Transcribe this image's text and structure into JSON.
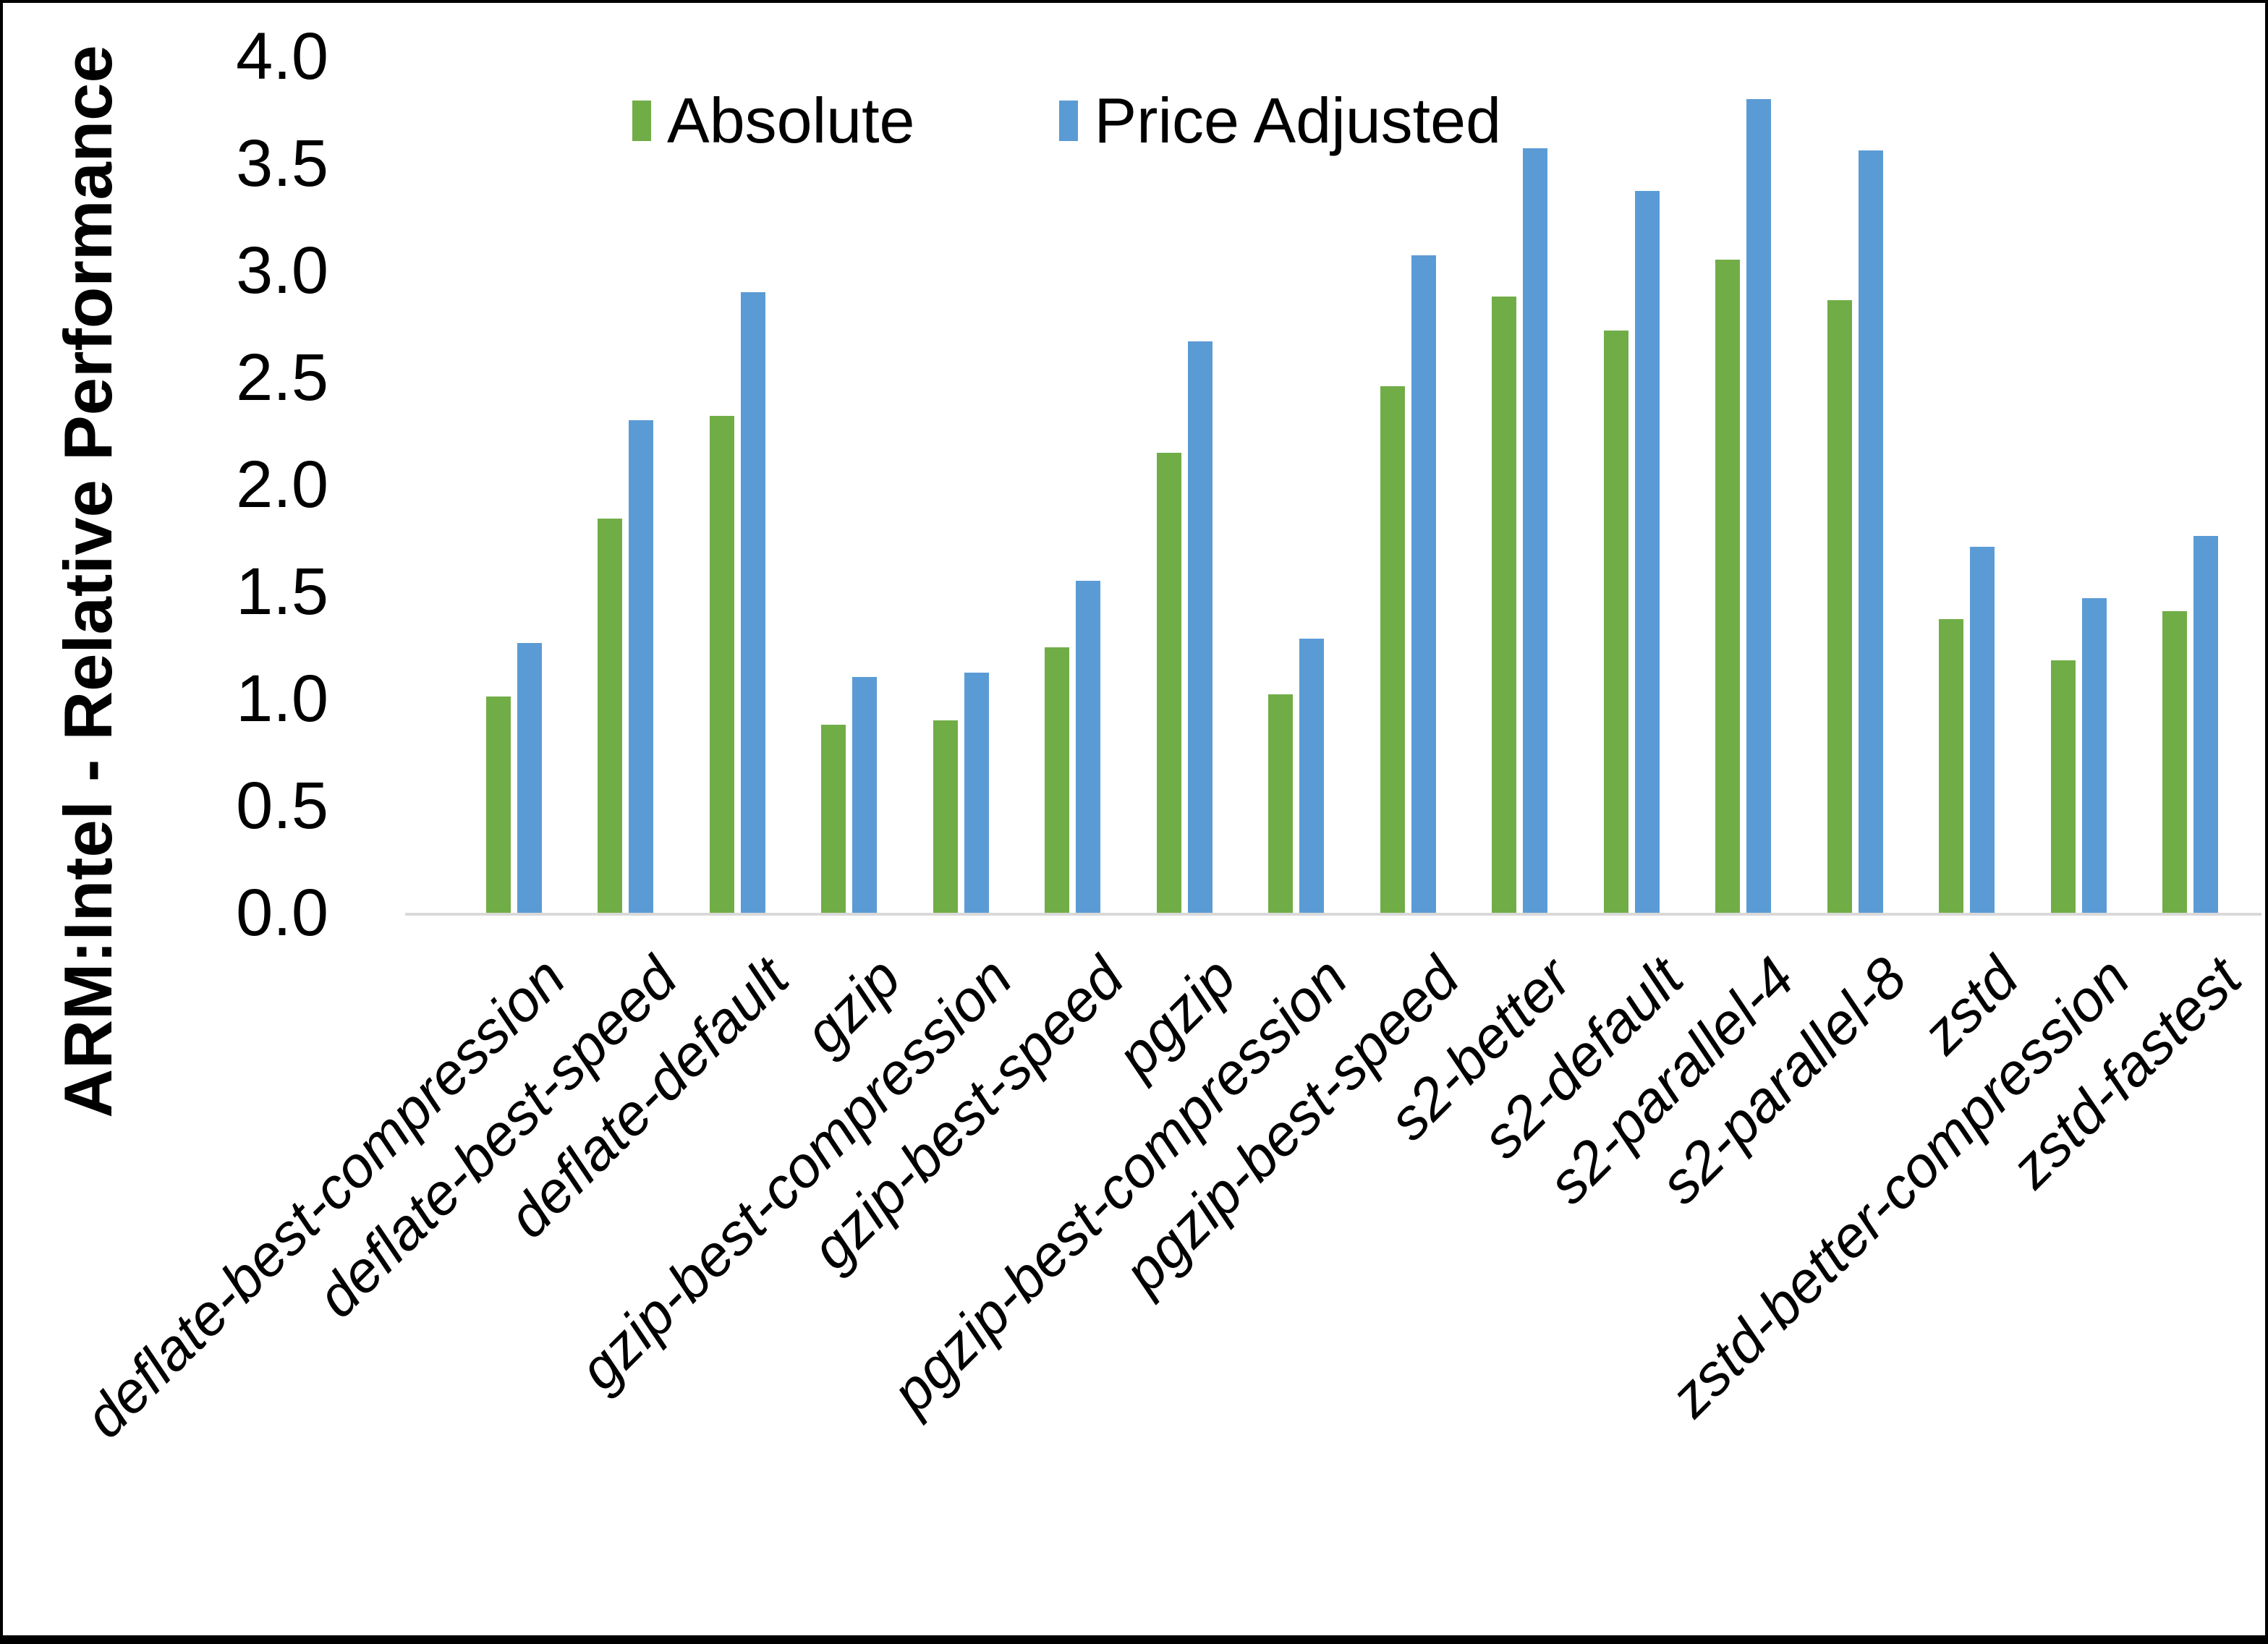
{
  "chart_data": {
    "type": "bar",
    "title": "",
    "xlabel": "",
    "ylabel": "ARM:Intel - Relative Performance",
    "ylim": [
      0.0,
      4.0
    ],
    "ytick_step": 0.5,
    "grid": false,
    "legend_position": "top",
    "axis_color": "#d9d9d9",
    "background_color": "#ffffff",
    "categories": [
      "deflate-best-compression",
      "deflate-best-speed",
      "deflate-default",
      "gzip",
      "gzip-best-compression",
      "gzip-best-speed",
      "pgzip",
      "pgzip-best-compression",
      "pgzip-best-speed",
      "s2-better",
      "s2-default",
      "s2-parallel-4",
      "s2-parallel-8",
      "zstd",
      "zstd-better-compression",
      "zstd-fastest"
    ],
    "series": [
      {
        "name": "Absolute",
        "color": "#70AD47",
        "values": [
          1.01,
          1.84,
          2.32,
          0.88,
          0.9,
          1.24,
          2.15,
          1.02,
          2.46,
          2.88,
          2.72,
          3.05,
          2.86,
          1.37,
          1.18,
          1.41
        ]
      },
      {
        "name": "Price Adjusted",
        "color": "#5B9BD5",
        "values": [
          1.26,
          2.3,
          2.9,
          1.1,
          1.12,
          1.55,
          2.67,
          1.28,
          3.07,
          3.57,
          3.37,
          3.8,
          3.56,
          1.71,
          1.47,
          1.76
        ]
      }
    ]
  }
}
